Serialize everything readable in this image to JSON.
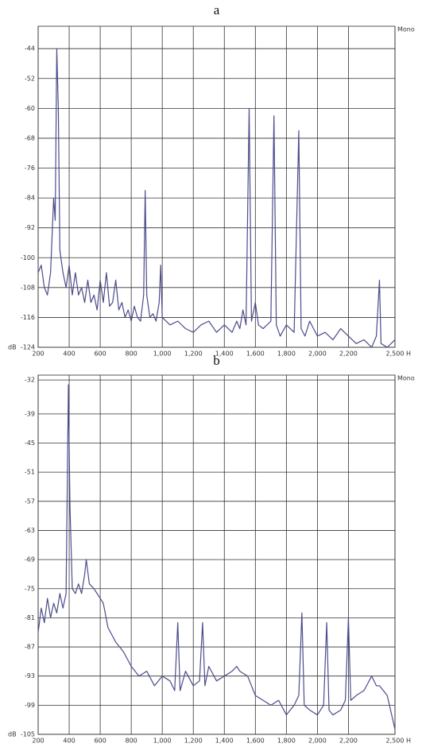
{
  "chart_data": [
    {
      "type": "line",
      "title": "a",
      "corner_label": "Mono",
      "y_unit": "dB",
      "x_unit": "H",
      "grid": true,
      "xlim": [
        200,
        2500
      ],
      "ylim": [
        -124,
        -38
      ],
      "xticks": [
        200,
        400,
        600,
        800,
        {
          "value": 1000,
          "label": "1,000"
        },
        {
          "value": 1200,
          "label": "1,200"
        },
        {
          "value": 1400,
          "label": "1,400"
        },
        {
          "value": 1600,
          "label": "1,600"
        },
        {
          "value": 1800,
          "label": "1,800"
        },
        {
          "value": 2000,
          "label": "2,000"
        },
        {
          "value": 2200,
          "label": "2,200"
        },
        {
          "value": 2500,
          "label": "2,500"
        }
      ],
      "yticks": [
        -44,
        -52,
        -60,
        -68,
        -76,
        -84,
        -92,
        -100,
        -108,
        -116,
        -124
      ],
      "x": [
        200,
        220,
        240,
        260,
        280,
        300,
        310,
        320,
        330,
        340,
        360,
        380,
        400,
        420,
        440,
        460,
        480,
        500,
        520,
        540,
        560,
        580,
        600,
        620,
        640,
        660,
        680,
        700,
        720,
        740,
        760,
        780,
        800,
        820,
        840,
        860,
        880,
        890,
        900,
        920,
        940,
        960,
        980,
        990,
        1000,
        1050,
        1100,
        1150,
        1200,
        1250,
        1300,
        1350,
        1400,
        1450,
        1480,
        1500,
        1520,
        1540,
        1560,
        1575,
        1600,
        1620,
        1650,
        1700,
        1720,
        1735,
        1760,
        1800,
        1850,
        1880,
        1895,
        1920,
        1950,
        2000,
        2050,
        2100,
        2150,
        2200,
        2250,
        2300,
        2350,
        2380,
        2400,
        2410,
        2450,
        2500
      ],
      "series": [
        {
          "color": "#4b4b8c",
          "values": [
            -104,
            -102,
            -108,
            -110,
            -104,
            -84,
            -90,
            -44,
            -60,
            -98,
            -104,
            -108,
            -102,
            -110,
            -104,
            -110,
            -108,
            -112,
            -106,
            -112,
            -110,
            -114,
            -106,
            -112,
            -104,
            -113,
            -112,
            -106,
            -114,
            -112,
            -116,
            -114,
            -117,
            -113,
            -116,
            -117,
            -110,
            -82,
            -110,
            -116,
            -115,
            -117,
            -112,
            -102,
            -116,
            -118,
            -117,
            -119,
            -120,
            -118,
            -117,
            -120,
            -118,
            -120,
            -117,
            -119,
            -114,
            -118,
            -60,
            -117,
            -112,
            -118,
            -119,
            -117,
            -62,
            -118,
            -121,
            -118,
            -120,
            -66,
            -119,
            -121,
            -117,
            -121,
            -120,
            -122,
            -119,
            -121,
            -123,
            -122,
            -124,
            -121,
            -106,
            -123,
            -124,
            -122
          ]
        }
      ]
    },
    {
      "type": "line",
      "title": "b",
      "corner_label": "Mono",
      "y_unit": "dB",
      "x_unit": "H",
      "grid": true,
      "xlim": [
        200,
        2500
      ],
      "ylim": [
        -105,
        -31
      ],
      "xticks": [
        200,
        400,
        600,
        800,
        {
          "value": 1000,
          "label": "1,000"
        },
        {
          "value": 1200,
          "label": "1,200"
        },
        {
          "value": 1400,
          "label": "1,400"
        },
        {
          "value": 1600,
          "label": "1,600"
        },
        {
          "value": 1800,
          "label": "1,800"
        },
        {
          "value": 2000,
          "label": "2,000"
        },
        {
          "value": 2200,
          "label": "2,200"
        },
        {
          "value": 2500,
          "label": "2,500"
        }
      ],
      "yticks": [
        -32,
        -39,
        -45,
        -51,
        -57,
        -63,
        -69,
        -75,
        -81,
        -87,
        -93,
        -99,
        -105
      ],
      "x": [
        200,
        220,
        240,
        260,
        280,
        300,
        320,
        340,
        360,
        380,
        395,
        405,
        420,
        440,
        460,
        480,
        500,
        510,
        530,
        560,
        600,
        620,
        650,
        700,
        750,
        800,
        850,
        900,
        950,
        1000,
        1050,
        1080,
        1100,
        1115,
        1150,
        1200,
        1240,
        1260,
        1275,
        1300,
        1350,
        1400,
        1450,
        1480,
        1500,
        1550,
        1600,
        1650,
        1700,
        1750,
        1800,
        1850,
        1880,
        1900,
        1915,
        1950,
        2000,
        2040,
        2060,
        2075,
        2100,
        2150,
        2180,
        2200,
        2215,
        2250,
        2300,
        2350,
        2380,
        2400,
        2450,
        2500
      ],
      "series": [
        {
          "color": "#4b4b8c",
          "values": [
            -84,
            -79,
            -82,
            -77,
            -81,
            -78,
            -80,
            -76,
            -79,
            -76,
            -33,
            -58,
            -75,
            -76,
            -74,
            -76,
            -72,
            -69,
            -74,
            -75,
            -77,
            -78,
            -83,
            -86,
            -88,
            -91,
            -93,
            -92,
            -95,
            -93,
            -94,
            -96,
            -82,
            -96,
            -92,
            -95,
            -94,
            -82,
            -95,
            -91,
            -94,
            -93,
            -92,
            -91,
            -92,
            -93,
            -97,
            -98,
            -99,
            -98,
            -101,
            -99,
            -97,
            -80,
            -99,
            -100,
            -101,
            -99,
            -82,
            -100,
            -101,
            -100,
            -98,
            -81,
            -98,
            -97,
            -96,
            -93,
            -95,
            -95,
            -97,
            -104
          ]
        }
      ]
    }
  ]
}
